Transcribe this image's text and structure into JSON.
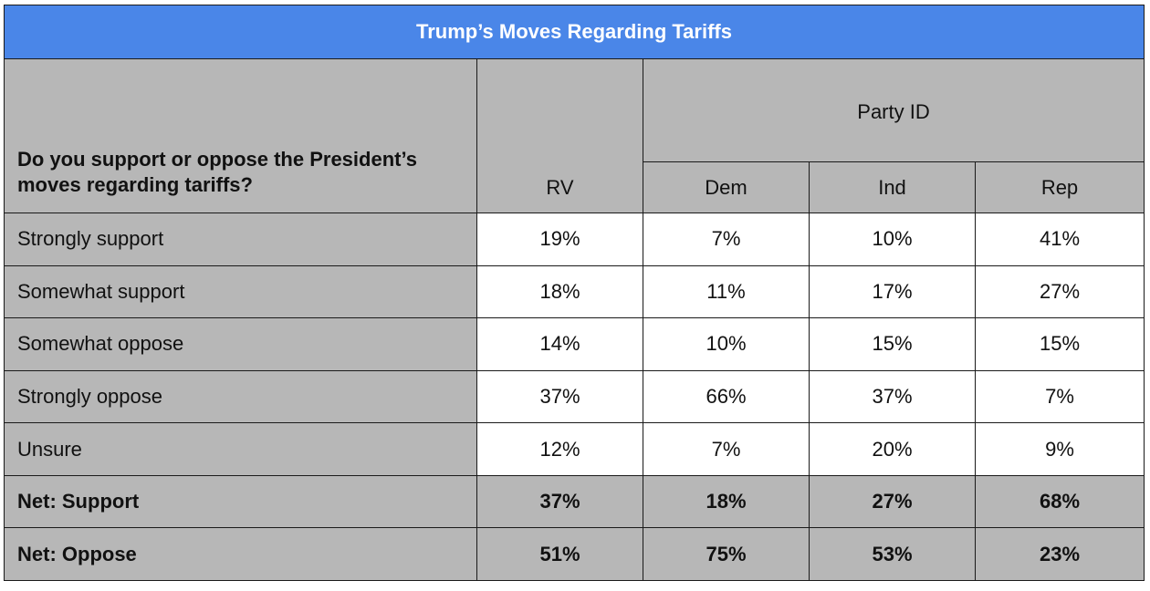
{
  "chart_data": {
    "type": "table",
    "title": "Trump’s Moves Regarding Tariffs",
    "question": "Do you support or oppose the President’s moves regarding tariffs?",
    "group_header": "Party ID",
    "columns": [
      "RV",
      "Dem",
      "Ind",
      "Rep"
    ],
    "rows": [
      {
        "label": "Strongly support",
        "values": [
          "19%",
          "7%",
          "10%",
          "41%"
        ],
        "bold": false
      },
      {
        "label": "Somewhat support",
        "values": [
          "18%",
          "11%",
          "17%",
          "27%"
        ],
        "bold": false
      },
      {
        "label": "Somewhat oppose",
        "values": [
          "14%",
          "10%",
          "15%",
          "15%"
        ],
        "bold": false
      },
      {
        "label": "Strongly oppose",
        "values": [
          "37%",
          "66%",
          "37%",
          "7%"
        ],
        "bold": false
      },
      {
        "label": "Unsure",
        "values": [
          "12%",
          "7%",
          "20%",
          "9%"
        ],
        "bold": false
      },
      {
        "label": "Net: Support",
        "values": [
          "37%",
          "18%",
          "27%",
          "68%"
        ],
        "bold": true
      },
      {
        "label": "Net: Oppose",
        "values": [
          "51%",
          "75%",
          "53%",
          "23%"
        ],
        "bold": true
      }
    ]
  },
  "colors": {
    "title_bg": "#4a86e8",
    "header_bg": "#b7b7b7",
    "cell_bg": "#ffffff"
  }
}
